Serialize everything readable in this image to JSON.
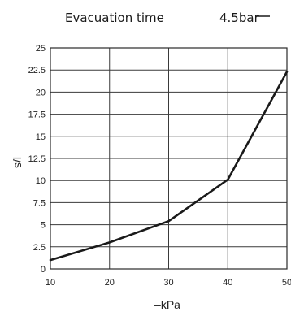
{
  "chart_data": {
    "type": "line",
    "title": "Evacuation time",
    "legend_label": "4.5bar",
    "xlabel": "–kPa",
    "ylabel": "s/l",
    "xlim": [
      10,
      50
    ],
    "ylim": [
      0,
      25
    ],
    "x_ticks": [
      "10",
      "20",
      "30",
      "40",
      "50"
    ],
    "y_ticks": [
      "0",
      "2.5",
      "5",
      "7.5",
      "10",
      "12.5",
      "15",
      "17.5",
      "20",
      "22.5",
      "25"
    ],
    "grid": true,
    "legend_position": "top-right",
    "series": [
      {
        "name": "4.5bar",
        "x": [
          10,
          20,
          30,
          40,
          50
        ],
        "y": [
          1.0,
          3.0,
          5.4,
          10.1,
          22.3
        ]
      }
    ]
  }
}
